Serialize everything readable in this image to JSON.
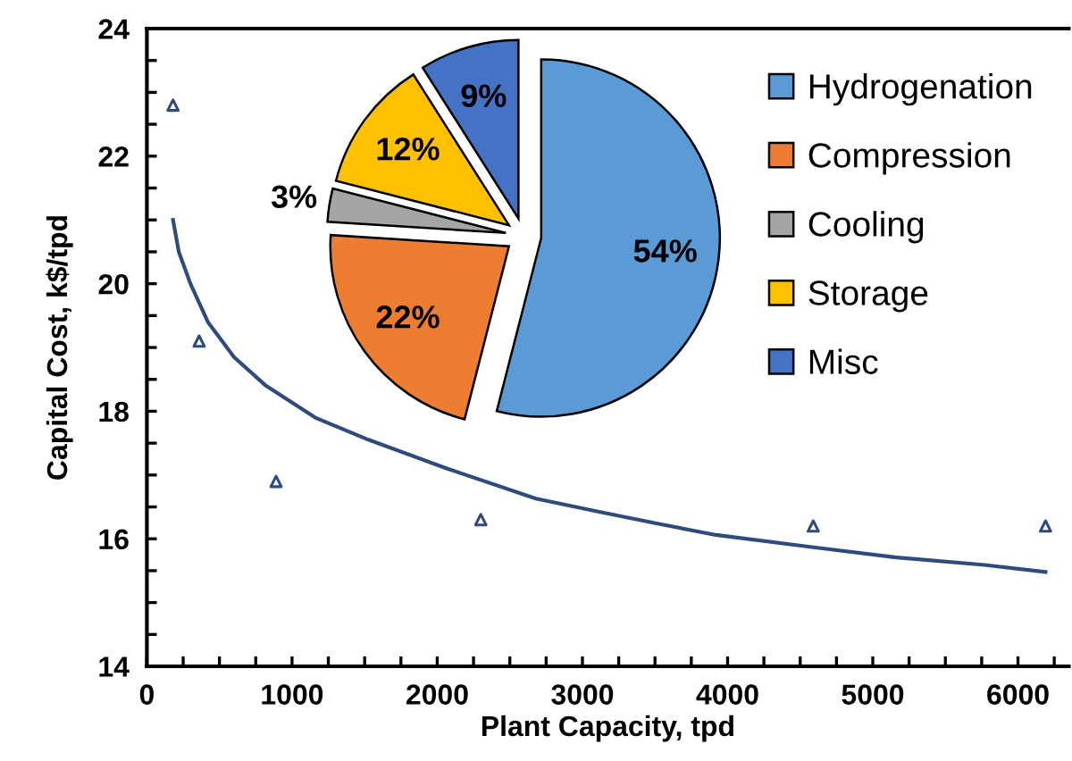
{
  "chart_data": [
    {
      "type": "scatter",
      "xlabel": "Plant Capacity, tpd",
      "ylabel": "Capital Cost, k$/tpd",
      "xlim": [
        0,
        6350
      ],
      "ylim": [
        14,
        24
      ],
      "xticks": [
        0,
        {
          "value": 250,
          "label": null
        },
        {
          "value": 500,
          "label": null
        },
        {
          "value": 750,
          "label": null
        },
        1000,
        {
          "value": 1250,
          "label": null
        },
        {
          "value": 1500,
          "label": null
        },
        {
          "value": 1750,
          "label": null
        },
        2000,
        {
          "value": 2250,
          "label": null
        },
        {
          "value": 2500,
          "label": null
        },
        {
          "value": 2750,
          "label": null
        },
        3000,
        {
          "value": 3250,
          "label": null
        },
        {
          "value": 3500,
          "label": null
        },
        {
          "value": 3750,
          "label": null
        },
        4000,
        {
          "value": 4250,
          "label": null
        },
        {
          "value": 4500,
          "label": null
        },
        {
          "value": 4750,
          "label": null
        },
        5000,
        {
          "value": 5250,
          "label": null
        },
        {
          "value": 5500,
          "label": null
        },
        {
          "value": 5750,
          "label": null
        },
        6000,
        {
          "value": 6250,
          "label": null
        }
      ],
      "yticks": [
        14,
        {
          "value": 14.5,
          "label": null
        },
        {
          "value": 15,
          "label": null
        },
        {
          "value": 15.5,
          "label": null
        },
        16,
        {
          "value": 16.5,
          "label": null
        },
        {
          "value": 17,
          "label": null
        },
        {
          "value": 17.5,
          "label": null
        },
        18,
        {
          "value": 18.5,
          "label": null
        },
        {
          "value": 19,
          "label": null
        },
        {
          "value": 19.5,
          "label": null
        },
        20,
        {
          "value": 20.5,
          "label": null
        },
        {
          "value": 21,
          "label": null
        },
        {
          "value": 21.5,
          "label": null
        },
        22,
        {
          "value": 22.5,
          "label": null
        },
        {
          "value": 23,
          "label": null
        },
        {
          "value": 23.5,
          "label": null
        },
        24
      ],
      "series": [
        {
          "type": "scatter",
          "marker": "triangle",
          "color": "#2f4b7c",
          "x": [
            180,
            360,
            890,
            2300,
            4590,
            6190
          ],
          "values": [
            22.8,
            19.1,
            16.9,
            16.3,
            16.2,
            16.2
          ]
        },
        {
          "type": "line",
          "marker": "none",
          "color": "#2f4b7c",
          "x": [
            180,
            220,
            300,
            420,
            600,
            820,
            1160,
            1530,
            2070,
            2680,
            3100,
            3510,
            3920,
            4580,
            5150,
            5770,
            6190
          ],
          "values": [
            21.0,
            20.5,
            20.0,
            19.4,
            18.85,
            18.4,
            17.9,
            17.55,
            17.1,
            16.63,
            16.43,
            16.24,
            16.06,
            15.87,
            15.71,
            15.59,
            15.48
          ]
        }
      ]
    },
    {
      "type": "pie",
      "categories": [
        "Hydrogenation",
        "Compression",
        "Cooling",
        "Storage",
        "Misc"
      ],
      "values": [
        54,
        22,
        3,
        12,
        9
      ],
      "colors": [
        "#5b9bd5",
        "#ed7d31",
        "#a5a5a5",
        "#ffc000",
        "#4472c4"
      ],
      "value_labels": [
        "54%",
        "22%",
        "3%",
        "12%",
        "9%"
      ],
      "legend": "right"
    }
  ]
}
